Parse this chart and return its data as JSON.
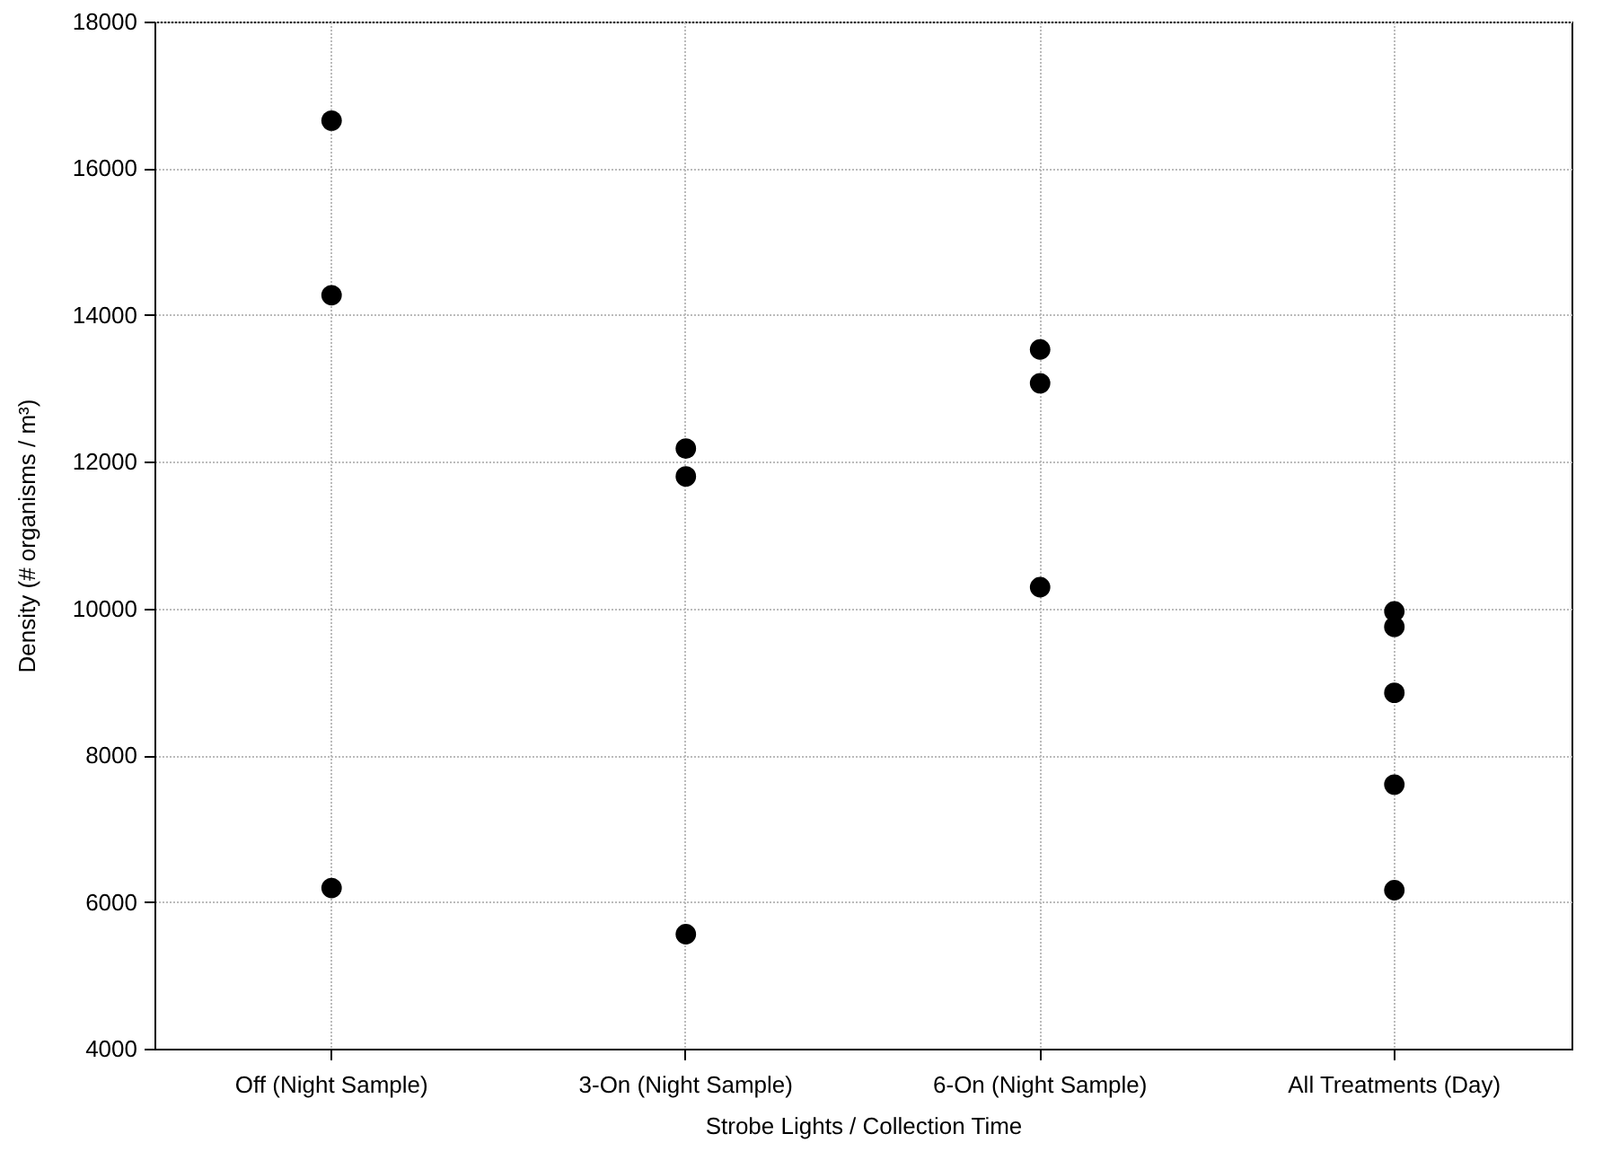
{
  "chart_data": {
    "type": "scatter",
    "xlabel": "Strobe Lights / Collection Time",
    "ylabel": "Density (# organisms / m³)",
    "categories": [
      "Off (Night Sample)",
      "3-On (Night Sample)",
      "6-On (Night Sample)",
      "All Treatments (Day)"
    ],
    "series": [
      {
        "color": "#000000",
        "x": [
          "Off (Night Sample)",
          "Off (Night Sample)",
          "Off (Night Sample)",
          "3-On (Night Sample)",
          "3-On (Night Sample)",
          "3-On (Night Sample)",
          "6-On (Night Sample)",
          "6-On (Night Sample)",
          "6-On (Night Sample)",
          "All Treatments (Day)",
          "All Treatments (Day)",
          "All Treatments (Day)",
          "All Treatments (Day)",
          "All Treatments (Day)"
        ],
        "values": [
          16650,
          14270,
          6190,
          12180,
          11800,
          5560,
          13530,
          13070,
          10290,
          9960,
          9750,
          8850,
          7600,
          6160
        ]
      }
    ],
    "ylim": [
      4000,
      18000
    ],
    "yticks": [
      4000,
      6000,
      8000,
      10000,
      12000,
      14000,
      16000,
      18000
    ],
    "grid": true,
    "marker": "circle",
    "legend": false
  }
}
